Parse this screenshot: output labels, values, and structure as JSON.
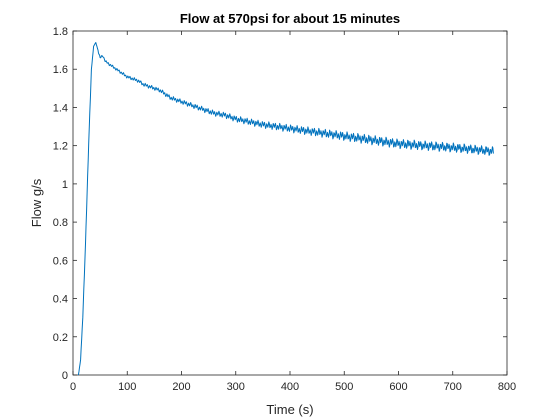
{
  "chart_data": {
    "type": "line",
    "title": "Flow at 570psi for about 15 minutes",
    "xlabel": "Time (s)",
    "ylabel": "Flow g/s",
    "xlim": [
      0,
      800
    ],
    "ylim": [
      0,
      1.8
    ],
    "xticks": [
      0,
      100,
      200,
      300,
      400,
      500,
      600,
      700,
      800
    ],
    "yticks": [
      0,
      0.2,
      0.4,
      0.6,
      0.8,
      1,
      1.2,
      1.4,
      1.6,
      1.8
    ],
    "grid": false,
    "series": [
      {
        "name": "Flow",
        "color": "#0072BD",
        "x": [
          10,
          14,
          18,
          22,
          26,
          30,
          34,
          38,
          42,
          46,
          50,
          55,
          60,
          70,
          80,
          90,
          100,
          110,
          120,
          130,
          140,
          150,
          160,
          170,
          180,
          190,
          200,
          220,
          240,
          260,
          280,
          300,
          350,
          400,
          450,
          500,
          550,
          600,
          650,
          700,
          740,
          775
        ],
        "y": [
          0.0,
          0.08,
          0.3,
          0.6,
          0.95,
          1.3,
          1.6,
          1.72,
          1.74,
          1.7,
          1.66,
          1.67,
          1.64,
          1.62,
          1.6,
          1.58,
          1.56,
          1.55,
          1.54,
          1.52,
          1.51,
          1.5,
          1.49,
          1.47,
          1.45,
          1.44,
          1.43,
          1.41,
          1.39,
          1.37,
          1.36,
          1.34,
          1.31,
          1.29,
          1.27,
          1.25,
          1.23,
          1.21,
          1.2,
          1.19,
          1.18,
          1.17
        ]
      }
    ]
  }
}
